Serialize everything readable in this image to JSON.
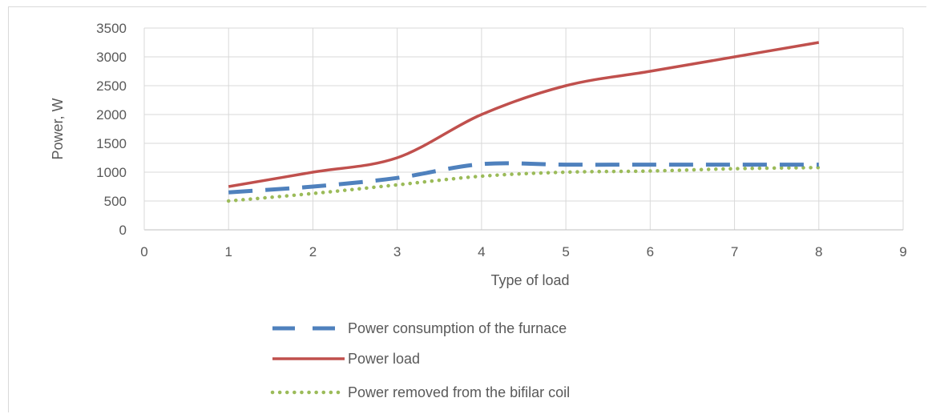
{
  "chart_data": {
    "type": "line",
    "xlabel": "Type of load",
    "ylabel": "Power, W",
    "xlim": [
      0,
      9
    ],
    "ylim": [
      0,
      3500
    ],
    "x_ticks": [
      0,
      1,
      2,
      3,
      4,
      5,
      6,
      7,
      8,
      9
    ],
    "y_ticks": [
      0,
      500,
      1000,
      1500,
      2000,
      2500,
      3000,
      3500
    ],
    "grid": true,
    "legend_position": "bottom",
    "series": [
      {
        "name": "Power consumption of the furnace",
        "color": "#4f81bd",
        "style": "dashed",
        "x": [
          1,
          2,
          3,
          4,
          5,
          6,
          7,
          8
        ],
        "values": [
          650,
          750,
          900,
          1140,
          1130,
          1130,
          1130,
          1130
        ]
      },
      {
        "name": "Power load",
        "color": "#c0504d",
        "style": "solid",
        "x": [
          1,
          2,
          3,
          4,
          5,
          6,
          7,
          8
        ],
        "values": [
          750,
          1000,
          1250,
          2000,
          2500,
          2750,
          3000,
          3250
        ]
      },
      {
        "name": "Power removed from the bifilar coil",
        "color": "#9bbb59",
        "style": "dotted",
        "x": [
          1,
          2,
          3,
          4,
          5,
          6,
          7,
          8
        ],
        "values": [
          500,
          630,
          780,
          930,
          1000,
          1020,
          1060,
          1080
        ]
      }
    ]
  }
}
